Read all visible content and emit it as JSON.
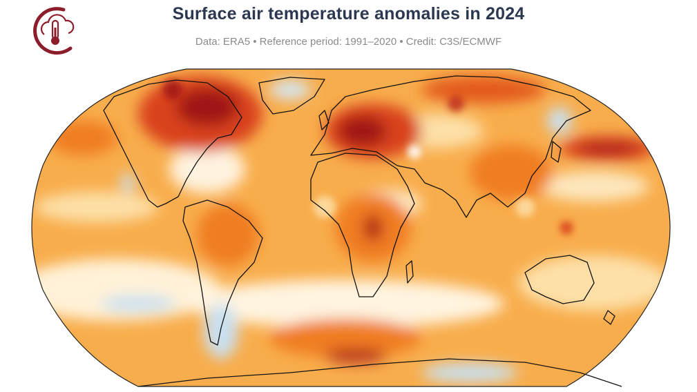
{
  "header": {
    "title": "Surface air temperature anomalies in 2024",
    "subtitle": "Data: ERA5 • Reference period: 1991–2020 • Credit: C3S/ECMWF",
    "logo_icon": "cloud-thermometer-icon"
  },
  "map": {
    "projection": "robinson",
    "variable": "surface air temperature anomaly",
    "colors": {
      "strong_warm": "#a01418",
      "warm": "#d9431c",
      "moderate_warm": "#f07d23",
      "mild_warm": "#f8ad4c",
      "slight_warm": "#fde0a8",
      "neutral": "#ffffff",
      "slight_cool": "#c9e0f0",
      "cool": "#6fa8d4",
      "coastline": "#111111",
      "logo": "#8c1d2a"
    }
  }
}
